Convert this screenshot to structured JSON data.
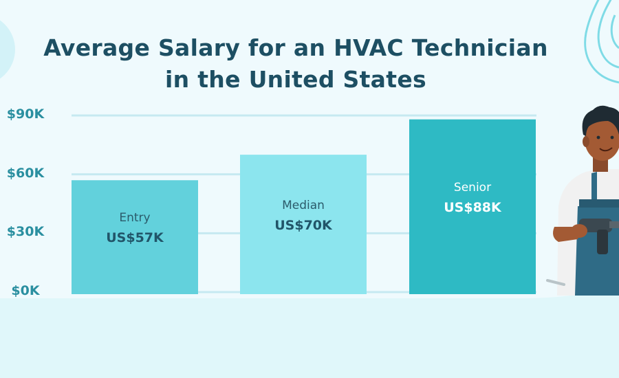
{
  "colors": {
    "background": "#effafd",
    "footer": "#e0f7fa",
    "title": "#1d4f63",
    "axis_text": "#2a8fa0",
    "gridline": "#c6e9f1",
    "bar_entry": "#62d1dc",
    "bar_median": "#8ce5ee",
    "bar_senior": "#2ebac4"
  },
  "chart_data": {
    "type": "bar",
    "title_lines": [
      "Average Salary for an HVAC Technician",
      "in the United States"
    ],
    "xlabel": "",
    "ylabel": "",
    "ylim": [
      0,
      90000
    ],
    "yticks": [
      0,
      30000,
      60000,
      90000
    ],
    "ytick_labels": [
      "$0K",
      "$30K",
      "$60K",
      "$90K"
    ],
    "grid": true,
    "categories": [
      "Entry",
      "Median",
      "Senior"
    ],
    "values": [
      57000,
      70000,
      88000
    ],
    "value_labels": [
      "US$57K",
      "US$70K",
      "US$88K"
    ]
  }
}
